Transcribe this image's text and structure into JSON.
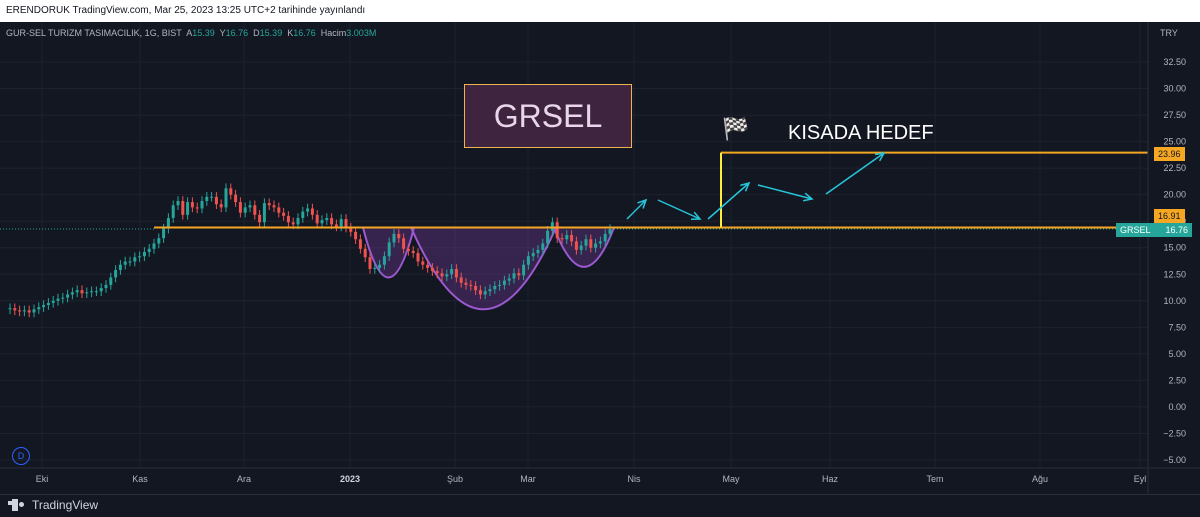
{
  "topbar": {
    "text": "ERENDORUK TradingView.com, Mar 25, 2023 13:25 UTC+2 tarihinde yayınlandı"
  },
  "legend": {
    "name": "GUR-SEL TURIZM TASIMACILIK, 1G, BIST",
    "a_label": "A",
    "a_value": "15.39",
    "y_label": "Y",
    "y_value": "16.76",
    "d_label": "D",
    "d_value": "15.39",
    "k_label": "K",
    "k_value": "16.76",
    "v_label": "Hacim",
    "v_value": "3.003M"
  },
  "currency": "TRY",
  "symbol_box": "GRSEL",
  "target_label": "KISADA HEDEF",
  "target_flag": "🏁",
  "price_labels": {
    "target": "23.96",
    "resistance": "16.91",
    "symbol": "GRSEL",
    "last": "16.76"
  },
  "footer": {
    "brand": "TradingView",
    "d_button": "D"
  },
  "colors": {
    "background": "#131722",
    "up": "#26a69a",
    "down": "#ef5350",
    "resistance": "#f5a623",
    "target": "#f5a623",
    "arc": "#9c59d1",
    "arrows": "#26c6da",
    "vertical": "#ffeb3b"
  },
  "chart_data": {
    "type": "candlestick",
    "y_ticks": [
      32.5,
      30.0,
      27.5,
      25.0,
      22.5,
      20.0,
      17.5,
      15.0,
      12.5,
      10.0,
      7.5,
      5.0,
      2.5,
      0.0,
      -2.5,
      -5.0
    ],
    "y_tick_labels": [
      "32.50",
      "30.00",
      "27.50",
      "25.00",
      "22.50",
      "20.00",
      "17.50",
      "15.00",
      "12.50",
      "10.00",
      "7.50",
      "5.00",
      "2.50",
      "0.00",
      "−2.50",
      "−5.00"
    ],
    "ylim": [
      -5.6,
      34.6
    ],
    "x_labels": [
      "Eki",
      "Kas",
      "Ara",
      "2023",
      "Şub",
      "Mar",
      "Nis",
      "May",
      "Haz",
      "Tem",
      "Ağu",
      "Eyl"
    ],
    "close_series": [
      9.3,
      9.1,
      9.0,
      9.1,
      8.9,
      9.2,
      9.4,
      9.6,
      9.8,
      10.0,
      10.2,
      10.3,
      10.6,
      10.8,
      11.0,
      10.7,
      10.8,
      10.9,
      10.9,
      11.2,
      11.5,
      12.2,
      12.9,
      13.4,
      13.7,
      13.7,
      14.1,
      14.2,
      14.6,
      14.9,
      15.4,
      15.9,
      16.8,
      17.8,
      19.0,
      19.4,
      18.1,
      19.3,
      18.8,
      18.7,
      19.4,
      19.8,
      19.8,
      19.1,
      18.8,
      20.6,
      20.0,
      19.3,
      18.3,
      18.8,
      19.0,
      18.1,
      17.4,
      19.2,
      19.0,
      18.8,
      18.3,
      18.0,
      17.4,
      17.2,
      17.8,
      18.4,
      18.7,
      18.1,
      17.3,
      17.6,
      17.8,
      17.2,
      17.0,
      17.7,
      16.9,
      16.5,
      15.8,
      14.9,
      14.1,
      13.0,
      13.1,
      13.4,
      14.2,
      15.5,
      16.3,
      15.9,
      14.9,
      14.7,
      14.5,
      13.7,
      13.4,
      13.1,
      12.8,
      12.6,
      12.3,
      12.5,
      13.0,
      12.2,
      11.7,
      11.5,
      11.4,
      11.0,
      10.6,
      10.9,
      11.1,
      11.4,
      11.5,
      11.9,
      12.1,
      12.6,
      12.4,
      13.4,
      14.2,
      14.5,
      14.8,
      15.4,
      16.6,
      17.4,
      15.9,
      15.8,
      16.2,
      15.6,
      14.8,
      15.2,
      15.8,
      15.0,
      15.4,
      15.6,
      16.3,
      16.76
    ],
    "resistance_level": 16.91,
    "target_level": 23.96,
    "last_price": 16.76
  }
}
